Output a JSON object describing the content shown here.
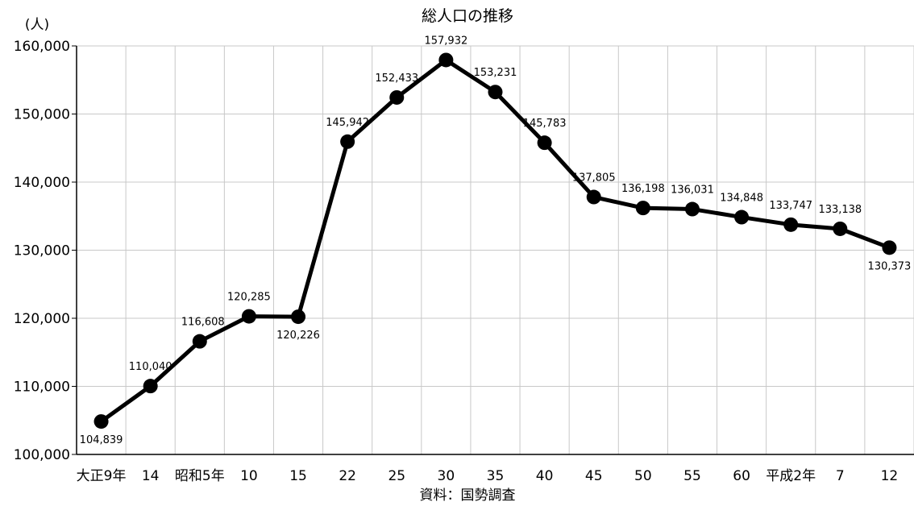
{
  "chart_data": {
    "type": "line",
    "title": "総人口の推移",
    "ylabel": "(人)",
    "xlabel": "",
    "source": "資料：国勢調査",
    "ylim": [
      100000,
      160000
    ],
    "yticks": [
      100000,
      110000,
      120000,
      130000,
      140000,
      150000,
      160000
    ],
    "ytick_labels": [
      "100,000",
      "110,000",
      "120,000",
      "130,000",
      "140,000",
      "150,000",
      "160,000"
    ],
    "grid": true,
    "categories": [
      "大正9年",
      "14",
      "昭和5年",
      "10",
      "15",
      "22",
      "25",
      "30",
      "35",
      "40",
      "45",
      "50",
      "55",
      "60",
      "平成2年",
      "7",
      "12"
    ],
    "series": [
      {
        "values": [
          104839,
          110040,
          116608,
          120285,
          120226,
          145942,
          152433,
          157932,
          153231,
          145783,
          137805,
          136198,
          136031,
          134848,
          133747,
          133138,
          130373
        ],
        "labels": [
          "104,839",
          "110,040",
          "116,608",
          "120,285",
          "120,226",
          "145,942",
          "152,433",
          "157,932",
          "153,231",
          "145,783",
          "137,805",
          "136,198",
          "136,031",
          "134,848",
          "133,747",
          "133,138",
          "130,373"
        ]
      }
    ]
  }
}
